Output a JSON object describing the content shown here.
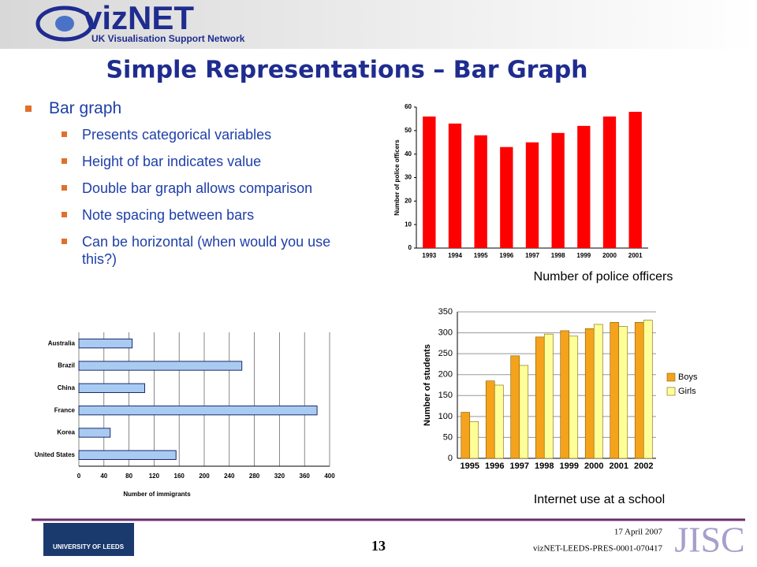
{
  "header": {
    "logo": "vizNET",
    "tagline": "UK Visualisation Support Network"
  },
  "title": "Simple Representations – Bar Graph",
  "bullets": {
    "main": "Bar graph",
    "items": [
      "Presents categorical variables",
      "Height of bar indicates value",
      "Double bar graph allows comparison",
      "Note spacing between bars",
      "Can be horizontal (when would you use this?)"
    ]
  },
  "chart_data": [
    {
      "type": "bar",
      "caption": "Number of police officers",
      "y_label": "Number of police officers",
      "categories": [
        "1993",
        "1994",
        "1995",
        "1996",
        "1997",
        "1998",
        "1999",
        "2000",
        "2001"
      ],
      "series": [
        {
          "color": "#ff0000",
          "values": [
            56,
            53,
            48,
            43,
            45,
            49,
            52,
            56,
            58
          ]
        }
      ],
      "ylim": [
        0,
        60
      ],
      "yticks": [
        0,
        10,
        20,
        30,
        40,
        50,
        60
      ],
      "grid": false
    },
    {
      "type": "bar",
      "horizontal": true,
      "x_label": "Number of immigrants",
      "categories": [
        "Australia",
        "Brazil",
        "China",
        "France",
        "Korea",
        "United States"
      ],
      "series": [
        {
          "color": "#a9cbf2",
          "values": [
            85,
            260,
            105,
            380,
            50,
            155
          ]
        }
      ],
      "xlim": [
        0,
        400
      ],
      "xticks": [
        0,
        40,
        80,
        120,
        160,
        200,
        240,
        280,
        320,
        360,
        400
      ],
      "grid": true
    },
    {
      "type": "bar",
      "caption": "Internet use at a school",
      "y_label": "Number of students",
      "categories": [
        "1995",
        "1996",
        "1997",
        "1998",
        "1999",
        "2000",
        "2001",
        "2002"
      ],
      "series": [
        {
          "name": "Boys",
          "color": "#f5a21c",
          "values": [
            110,
            185,
            245,
            290,
            305,
            310,
            325,
            325
          ]
        },
        {
          "name": "Girls",
          "color": "#ffff99",
          "values": [
            88,
            175,
            222,
            297,
            292,
            320,
            315,
            330
          ]
        }
      ],
      "ylim": [
        0,
        350
      ],
      "yticks": [
        0,
        50,
        100,
        150,
        200,
        250,
        300,
        350
      ],
      "grid": true,
      "legend": "right"
    }
  ],
  "footer": {
    "date": "17 April 2007",
    "page": "13",
    "ref": "vizNET-LEEDS-PRES-0001-070417",
    "university": "UNIVERSITY OF LEEDS",
    "sponsor": "JISC"
  }
}
